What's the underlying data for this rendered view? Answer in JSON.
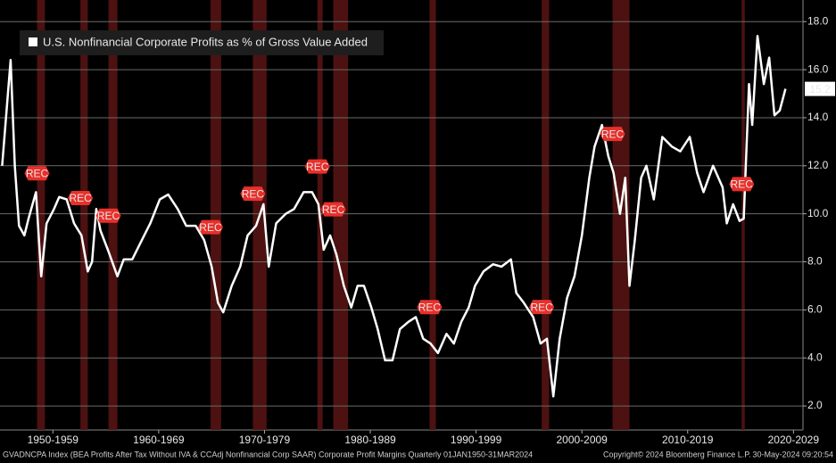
{
  "chart_data": {
    "type": "line",
    "legend": "U.S. Nonfinancial Corporate Profits as % of Gross Value Added",
    "recession_label": "REC",
    "footer_source": "GVADNCPA Index (BEA Profits After Tax Without IVA & CCAdj Nonfinancial Corp SAAR) Corporate Profit Margins  Quarterly 01JAN1950-31MAR2024",
    "footer_copyright": "Copyright© 2024 Bloomberg Finance L.P.",
    "footer_timestamp": "30-May-2024 09:20:54",
    "xlim": [
      1950,
      2025.9
    ],
    "ylim": [
      1.0,
      18.9
    ],
    "yticks": [
      {
        "value": 2,
        "label": "2.0"
      },
      {
        "value": 4,
        "label": "4.0"
      },
      {
        "value": 6,
        "label": "6.0"
      },
      {
        "value": 8,
        "label": "8.0"
      },
      {
        "value": 10,
        "label": "10.0"
      },
      {
        "value": 12,
        "label": "12.0"
      },
      {
        "value": 14,
        "label": "14.0"
      },
      {
        "value": 16,
        "label": "16.0"
      },
      {
        "value": 18,
        "label": "18.0"
      }
    ],
    "xticks": [
      {
        "value": 1955,
        "label": "1950-1959"
      },
      {
        "value": 1965,
        "label": "1960-1969"
      },
      {
        "value": 1975,
        "label": "1970-1979"
      },
      {
        "value": 1985,
        "label": "1980-1989"
      },
      {
        "value": 1995,
        "label": "1990-1999"
      },
      {
        "value": 2005,
        "label": "2000-2009"
      },
      {
        "value": 2015,
        "label": "2010-2019"
      },
      {
        "value": 2025,
        "label": "2020-2029"
      }
    ],
    "grid": true,
    "recessions": [
      [
        1953.5,
        1954.25
      ],
      [
        1957.6,
        1958.3
      ],
      [
        1960.25,
        1961.1
      ],
      [
        1969.9,
        1970.9
      ],
      [
        1973.9,
        1975.2
      ],
      [
        1980.0,
        1980.5
      ],
      [
        1981.5,
        1982.9
      ],
      [
        1990.6,
        1991.2
      ],
      [
        2001.2,
        2001.9
      ],
      [
        2007.9,
        2009.5
      ],
      [
        2020.1,
        2020.4
      ]
    ],
    "recession_color": "#5a1414",
    "x": [
      1950.2,
      1951.0,
      1951.4,
      1951.8,
      1952.3,
      1952.7,
      1953.4,
      1953.9,
      1954.4,
      1955.1,
      1955.6,
      1956.3,
      1957.0,
      1957.7,
      1958.3,
      1958.7,
      1959.1,
      1959.5,
      1960.2,
      1961.1,
      1961.7,
      1962.5,
      1963.4,
      1964.2,
      1965.1,
      1965.9,
      1966.8,
      1967.6,
      1968.5,
      1969.3,
      1970.0,
      1970.6,
      1971.1,
      1971.9,
      1972.7,
      1973.4,
      1974.2,
      1974.9,
      1975.4,
      1976.1,
      1977.0,
      1977.8,
      1978.7,
      1979.5,
      1980.1,
      1980.6,
      1981.2,
      1981.8,
      1982.5,
      1983.2,
      1983.8,
      1984.4,
      1985.1,
      1985.7,
      1986.4,
      1987.1,
      1987.8,
      1988.6,
      1989.3,
      1990.0,
      1990.7,
      1991.4,
      1992.2,
      1992.9,
      1993.6,
      1994.3,
      1994.9,
      1995.7,
      1996.6,
      1997.4,
      1998.3,
      1998.8,
      1999.5,
      2000.4,
      2001.1,
      2001.7,
      2002.3,
      2002.9,
      2003.6,
      2004.3,
      2005.0,
      2005.7,
      2006.2,
      2006.9,
      2007.5,
      2008.0,
      2008.6,
      2009.1,
      2009.5,
      2010.0,
      2010.6,
      2011.1,
      2011.8,
      2012.6,
      2013.5,
      2014.3,
      2015.2,
      2015.9,
      2016.5,
      2017.4,
      2018.3,
      2018.7,
      2019.3,
      2019.9,
      2020.3,
      2020.8,
      2021.1,
      2021.6,
      2022.2,
      2022.7,
      2023.2,
      2023.7,
      2024.25
    ],
    "series": [
      {
        "name": "U.S. Nonfinancial Corporate Profits as % of Gross Value Added",
        "color": "#ffffff",
        "values": [
          12.0,
          16.4,
          12.0,
          9.5,
          9.1,
          9.8,
          10.9,
          7.4,
          9.6,
          10.2,
          10.7,
          10.6,
          9.6,
          9.1,
          7.6,
          8.0,
          10.2,
          9.3,
          8.5,
          7.4,
          8.1,
          8.1,
          8.9,
          9.6,
          10.6,
          10.8,
          10.2,
          9.5,
          9.5,
          8.9,
          7.8,
          6.3,
          5.9,
          7.0,
          7.8,
          9.1,
          9.5,
          10.4,
          7.8,
          9.6,
          10.0,
          10.2,
          10.9,
          10.9,
          10.4,
          8.5,
          9.1,
          8.3,
          7.0,
          6.1,
          7.0,
          7.0,
          6.1,
          5.2,
          3.9,
          3.9,
          5.2,
          5.5,
          5.7,
          4.8,
          4.6,
          4.2,
          5.0,
          4.6,
          5.5,
          6.1,
          7.0,
          7.6,
          7.9,
          7.8,
          8.1,
          6.7,
          6.3,
          5.7,
          4.6,
          4.8,
          2.4,
          4.8,
          6.5,
          7.4,
          9.1,
          11.5,
          12.8,
          13.7,
          12.4,
          11.7,
          10.0,
          11.5,
          7.0,
          8.9,
          11.5,
          12.0,
          10.6,
          13.2,
          12.8,
          12.6,
          13.2,
          11.7,
          10.9,
          12.0,
          11.1,
          9.6,
          10.4,
          9.7,
          9.8,
          15.4,
          13.7,
          17.4,
          15.4,
          16.5,
          14.1,
          14.3,
          15.2
        ]
      }
    ]
  }
}
